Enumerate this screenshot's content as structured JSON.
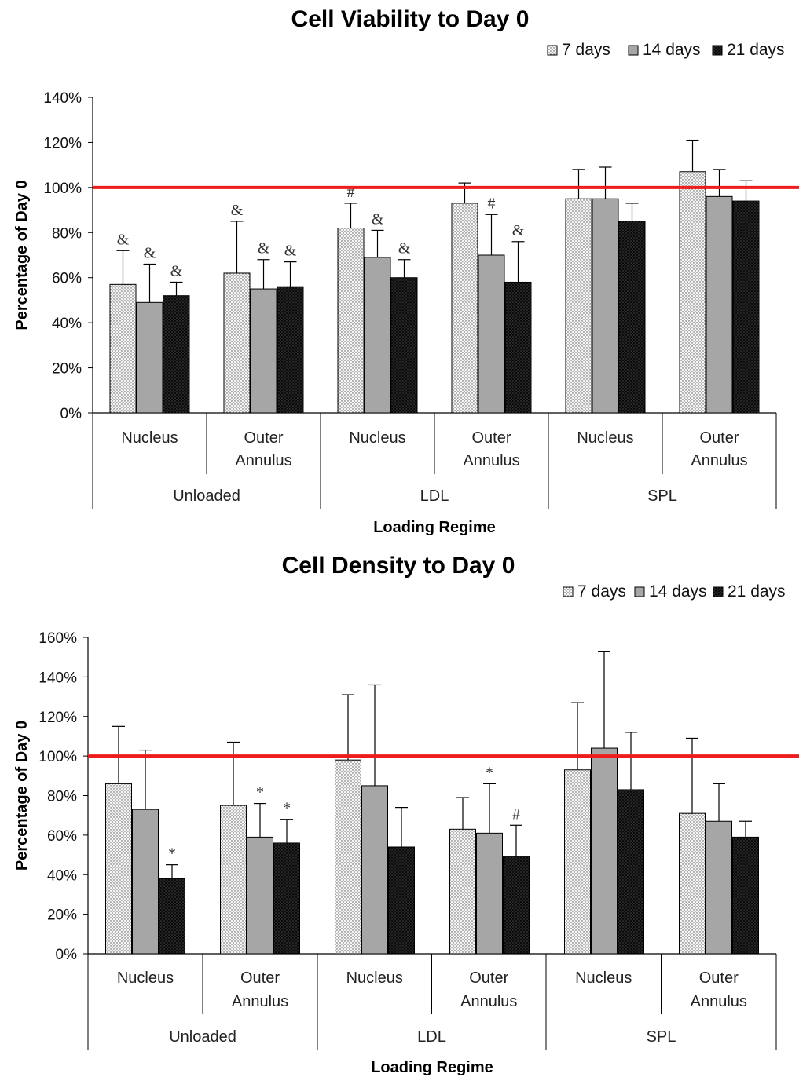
{
  "chart_data": [
    {
      "type": "bar",
      "title": "Cell Viability to Day 0",
      "xlabel": "Loading Regime",
      "ylabel": "Percentage of Day 0",
      "ylim": [
        0,
        140
      ],
      "yticks": [
        "0%",
        "20%",
        "40%",
        "60%",
        "80%",
        "100%",
        "120%",
        "140%"
      ],
      "reference_line": 100,
      "legend": {
        "position": "top-right",
        "entries": [
          "7 days",
          "14 days",
          "21 days"
        ]
      },
      "groups": [
        "Unloaded",
        "LDL",
        "SPL"
      ],
      "subcategories": [
        {
          "line1": "Nucleus",
          "line2": ""
        },
        {
          "line1": "Outer",
          "line2": "Annulus"
        }
      ],
      "categories": [
        "Unloaded Nucleus",
        "Unloaded Outer Annulus",
        "LDL Nucleus",
        "LDL Outer Annulus",
        "SPL Nucleus",
        "SPL Outer Annulus"
      ],
      "series": [
        {
          "name": "7 days",
          "values": [
            57,
            62,
            82,
            93,
            95,
            107
          ],
          "errors": [
            15,
            23,
            11,
            9,
            13,
            14
          ],
          "annotations": [
            "&",
            "&",
            "#",
            "",
            "",
            ""
          ]
        },
        {
          "name": "14 days",
          "values": [
            49,
            55,
            69,
            70,
            95,
            96
          ],
          "errors": [
            17,
            13,
            12,
            18,
            14,
            12
          ],
          "annotations": [
            "&",
            "&",
            "&",
            "#",
            "",
            ""
          ]
        },
        {
          "name": "21 days",
          "values": [
            52,
            56,
            60,
            58,
            85,
            94
          ],
          "errors": [
            6,
            11,
            8,
            18,
            8,
            9
          ],
          "annotations": [
            "&",
            "&",
            "&",
            "&",
            "",
            ""
          ]
        }
      ]
    },
    {
      "type": "bar",
      "title": "Cell Density to Day 0",
      "xlabel": "Loading Regime",
      "ylabel": "Percentage of Day 0",
      "ylim": [
        0,
        160
      ],
      "yticks": [
        "0%",
        "20%",
        "40%",
        "60%",
        "80%",
        "100%",
        "120%",
        "140%",
        "160%"
      ],
      "reference_line": 100,
      "legend": {
        "position": "top-right",
        "entries": [
          "7 days",
          "14 days",
          "21 days"
        ]
      },
      "groups": [
        "Unloaded",
        "LDL",
        "SPL"
      ],
      "subcategories": [
        {
          "line1": "Nucleus",
          "line2": ""
        },
        {
          "line1": "Outer",
          "line2": "Annulus"
        }
      ],
      "categories": [
        "Unloaded Nucleus",
        "Unloaded Outer Annulus",
        "LDL Nucleus",
        "LDL Outer Annulus",
        "SPL Nucleus",
        "SPL Outer Annulus"
      ],
      "series": [
        {
          "name": "7 days",
          "values": [
            86,
            75,
            98,
            63,
            93,
            71
          ],
          "errors": [
            29,
            32,
            33,
            16,
            34,
            38
          ],
          "annotations": [
            "",
            "",
            "",
            "",
            "",
            ""
          ]
        },
        {
          "name": "14 days",
          "values": [
            73,
            59,
            85,
            61,
            104,
            67
          ],
          "errors": [
            30,
            17,
            51,
            25,
            49,
            19
          ],
          "annotations": [
            "",
            "*",
            "",
            "*",
            "",
            ""
          ]
        },
        {
          "name": "21 days",
          "values": [
            38,
            56,
            54,
            49,
            83,
            59
          ],
          "errors": [
            7,
            12,
            20,
            16,
            29,
            8
          ],
          "annotations": [
            "*",
            "*",
            "",
            "#",
            "",
            ""
          ]
        }
      ]
    }
  ]
}
